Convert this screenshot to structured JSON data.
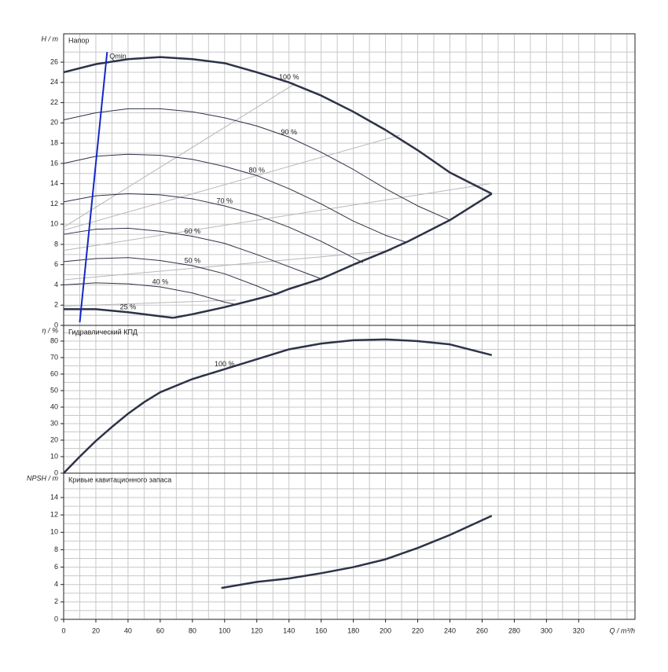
{
  "chart_data": [
    {
      "type": "line",
      "title": "Напор",
      "ylabel": "H / m",
      "ylim": [
        0,
        28.8
      ],
      "yticks": [
        0,
        2,
        4,
        6,
        8,
        10,
        12,
        14,
        16,
        18,
        20,
        22,
        24,
        26
      ],
      "series": [
        {
          "color": "#b8b8b8",
          "width": 1,
          "x": [
            0,
            143
          ],
          "values": [
            9.7,
            23.8
          ]
        },
        {
          "color": "#b8b8b8",
          "width": 1,
          "x": [
            0,
            209
          ],
          "values": [
            9.4,
            18.8
          ]
        },
        {
          "color": "#b8b8b8",
          "width": 1,
          "x": [
            0,
            265
          ],
          "values": [
            7.4,
            14.0
          ]
        },
        {
          "color": "#b8b8b8",
          "width": 1,
          "x": [
            0,
            204
          ],
          "values": [
            4.5,
            7.4
          ]
        },
        {
          "color": "#b8b8b8",
          "width": 1,
          "x": [
            0,
            107
          ],
          "values": [
            1.9,
            2.5
          ]
        },
        {
          "name": "100 %",
          "color": "#2d3347",
          "width": 2.5,
          "x": [
            0,
            20,
            40,
            60,
            80,
            100,
            120,
            140,
            160,
            180,
            200,
            220,
            240,
            266
          ],
          "values": [
            25.0,
            25.8,
            26.3,
            26.5,
            26.3,
            25.9,
            25.0,
            24.0,
            22.7,
            21.1,
            19.3,
            17.3,
            15.1,
            13.0
          ]
        },
        {
          "name": "90 %",
          "color": "#2d3347",
          "width": 1,
          "x": [
            0,
            20,
            40,
            60,
            80,
            100,
            120,
            140,
            160,
            180,
            200,
            220,
            240
          ],
          "values": [
            20.3,
            21.0,
            21.4,
            21.4,
            21.1,
            20.5,
            19.7,
            18.6,
            17.1,
            15.4,
            13.5,
            11.8,
            10.4
          ]
        },
        {
          "name": "80 %",
          "color": "#2d3347",
          "width": 1,
          "x": [
            0,
            20,
            40,
            60,
            80,
            100,
            120,
            140,
            160,
            180,
            200,
            213
          ],
          "values": [
            16.0,
            16.7,
            16.9,
            16.8,
            16.4,
            15.7,
            14.8,
            13.5,
            12.0,
            10.3,
            8.9,
            8.2
          ]
        },
        {
          "name": "70 %",
          "color": "#2d3347",
          "width": 1,
          "x": [
            0,
            20,
            40,
            60,
            80,
            100,
            120,
            140,
            160,
            186
          ],
          "values": [
            12.2,
            12.8,
            13.0,
            12.9,
            12.5,
            11.8,
            10.9,
            9.7,
            8.3,
            6.2
          ]
        },
        {
          "name": "60 %",
          "color": "#2d3347",
          "width": 1,
          "x": [
            0,
            20,
            40,
            60,
            80,
            100,
            120,
            140,
            160
          ],
          "values": [
            9.0,
            9.5,
            9.6,
            9.3,
            8.8,
            8.1,
            7.0,
            5.8,
            4.6
          ]
        },
        {
          "name": "50 %",
          "color": "#2d3347",
          "width": 1,
          "x": [
            0,
            20,
            40,
            60,
            80,
            100,
            120,
            132
          ],
          "values": [
            6.3,
            6.6,
            6.7,
            6.4,
            5.9,
            5.1,
            3.9,
            3.1
          ]
        },
        {
          "name": "40 %",
          "color": "#2d3347",
          "width": 1,
          "x": [
            0,
            20,
            40,
            60,
            80,
            100,
            106
          ],
          "values": [
            4.0,
            4.2,
            4.1,
            3.8,
            3.2,
            2.3,
            2.1
          ]
        },
        {
          "name": "25 %",
          "color": "#2d3347",
          "width": 2.5,
          "x": [
            0,
            20,
            40,
            60,
            68
          ],
          "values": [
            1.6,
            1.6,
            1.3,
            0.9,
            0.75
          ]
        },
        {
          "color": "#2d3347",
          "width": 2.5,
          "x": [
            68,
            80,
            100,
            120,
            132,
            140,
            160,
            180,
            200,
            214,
            240,
            266
          ],
          "values": [
            0.75,
            1.1,
            1.8,
            2.6,
            3.1,
            3.6,
            4.6,
            6.0,
            7.3,
            8.3,
            10.4,
            13.0
          ]
        },
        {
          "name": "Qmin",
          "color": "#1428c8",
          "width": 2,
          "x": [
            10,
            27
          ],
          "values": [
            0.3,
            27.0
          ]
        }
      ]
    },
    {
      "type": "line",
      "title": "Гидравлический КПД",
      "ylabel": "η / %",
      "ylim": [
        0,
        89.5
      ],
      "yticks": [
        0,
        10,
        20,
        30,
        40,
        50,
        60,
        70,
        80
      ],
      "series": [
        {
          "name": "100 %",
          "color": "#2d3347",
          "width": 2.5,
          "x": [
            0,
            10,
            20,
            30,
            40,
            50,
            60,
            80,
            100,
            120,
            140,
            160,
            180,
            200,
            220,
            240,
            266
          ],
          "values": [
            0,
            10,
            19.5,
            28,
            36,
            43,
            49,
            57,
            63,
            69,
            75,
            78.5,
            80.5,
            81,
            80,
            78,
            71.5
          ]
        }
      ]
    },
    {
      "type": "line",
      "title": "Кривые кавитационного запаса",
      "ylabel": "NPSH / m",
      "xlabel": "Q / m³/h",
      "ylim": [
        0,
        16.8
      ],
      "yticks": [
        0,
        2,
        4,
        6,
        8,
        10,
        12,
        14
      ],
      "xlim": [
        0,
        355
      ],
      "xticks": [
        0,
        20,
        40,
        60,
        80,
        100,
        120,
        140,
        160,
        180,
        200,
        220,
        240,
        260,
        280,
        300,
        320
      ],
      "series": [
        {
          "color": "#2d3347",
          "width": 2.5,
          "x": [
            98,
            120,
            140,
            160,
            180,
            200,
            220,
            240,
            266
          ],
          "values": [
            3.6,
            4.3,
            4.7,
            5.3,
            6.0,
            6.9,
            8.2,
            9.7,
            11.9
          ]
        }
      ]
    }
  ]
}
